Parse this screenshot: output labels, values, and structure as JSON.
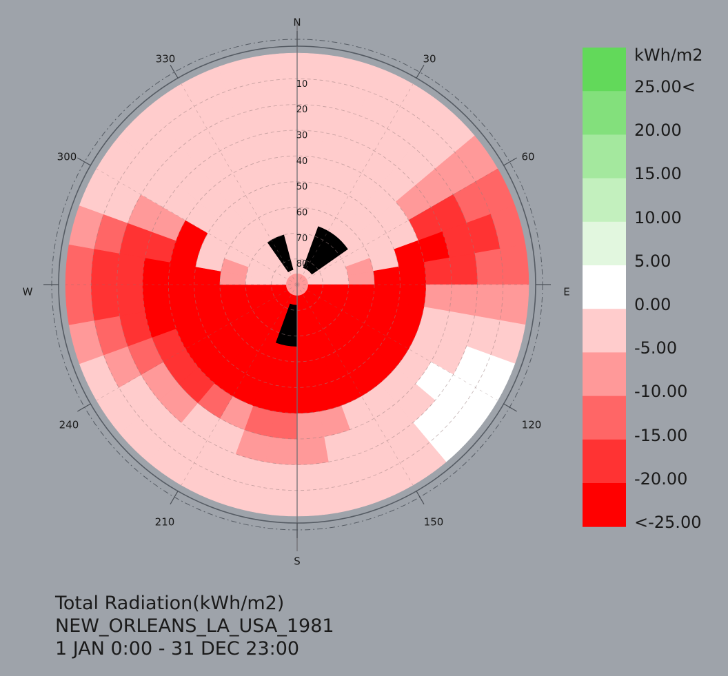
{
  "caption": {
    "line1": "Total Radiation(kWh/m2)",
    "line2": "NEW_ORLEANS_LA_USA_1981",
    "line3": "1 JAN 0:00 - 31 DEC 23:00"
  },
  "chart_data": {
    "type": "heatmap",
    "projection": "polar sky dome (azimuth / altitude)",
    "compass": {
      "N": "N",
      "E": "E",
      "S": "S",
      "W": "W"
    },
    "azimuth_ticks": [
      "30",
      "60",
      "120",
      "150",
      "210",
      "240",
      "300",
      "330"
    ],
    "altitude_ticks": [
      "10",
      "20",
      "30",
      "40",
      "50",
      "60",
      "70",
      "80"
    ],
    "legend": {
      "unit": "kWh/m2",
      "labels": [
        "25.00<",
        "20.00",
        "15.00",
        "10.00",
        "5.00",
        "0.00",
        "-5.00",
        "-10.00",
        "-15.00",
        "-20.00",
        "<-25.00"
      ],
      "colors": [
        "#62d95a",
        "#83e07c",
        "#a4e89e",
        "#c3f0be",
        "#e2f7df",
        "#ffffff",
        "#ffcccc",
        "#ff9999",
        "#ff6666",
        "#ff3333",
        "#ff0000"
      ]
    },
    "obstruction_color": "#000000",
    "cell_values_note": "approximate, in legend units (kWh/m2)",
    "rows": [
      {
        "alt_from": 0,
        "alt_to": 10,
        "az_values": [
          -3,
          -3,
          -3,
          -3,
          -5,
          -8,
          -12,
          -12,
          -12,
          -8,
          -3,
          0,
          1,
          1,
          -3,
          -5,
          -5,
          -5,
          -5,
          -3,
          -3,
          -5,
          -5,
          -5,
          -5,
          -10,
          -12,
          -12,
          -8,
          -5,
          -3,
          -3,
          -3,
          -3,
          -3,
          -3
        ]
      },
      {
        "alt_from": 10,
        "alt_to": 20,
        "az_values": [
          -3,
          -3,
          -3,
          -3,
          -5,
          -8,
          -12,
          -18,
          -12,
          -8,
          -3,
          0,
          1,
          1,
          -3,
          -5,
          -5,
          -5,
          -5,
          -5,
          -5,
          -5,
          -5,
          -5,
          -8,
          -12,
          -18,
          -18,
          -12,
          -5,
          -3,
          -3,
          -3,
          -3,
          -3,
          -3
        ]
      },
      {
        "alt_from": 20,
        "alt_to": 30,
        "az_values": [
          -3,
          -3,
          -3,
          -3,
          -5,
          -8,
          -18,
          -20,
          -18,
          -8,
          -3,
          -3,
          1,
          -3,
          -3,
          -5,
          -5,
          -8,
          -8,
          -8,
          -5,
          -5,
          -8,
          -10,
          -12,
          -18,
          -20,
          -20,
          -18,
          -8,
          -3,
          -3,
          -3,
          -3,
          -3,
          -3
        ]
      },
      {
        "alt_from": 30,
        "alt_to": 40,
        "az_values": [
          -3,
          -3,
          -3,
          -3,
          -3,
          -8,
          -18,
          -22,
          -18,
          -8,
          -5,
          -3,
          -3,
          -3,
          -5,
          -5,
          -8,
          -8,
          -12,
          -12,
          -10,
          -12,
          -18,
          -18,
          -20,
          -22,
          -22,
          -22,
          -20,
          -8,
          -3,
          -3,
          -3,
          -3,
          -3,
          -3
        ]
      },
      {
        "alt_from": 40,
        "alt_to": 50,
        "az_values": [
          -3,
          -3,
          -3,
          -3,
          -3,
          -3,
          -3,
          -22,
          -22,
          -22,
          -22,
          -22,
          -22,
          -22,
          -22,
          -22,
          -22,
          -22,
          -22,
          -22,
          -22,
          -22,
          -22,
          -22,
          -22,
          -22,
          -22,
          -22,
          -22,
          -22,
          -3,
          -3,
          -3,
          -3,
          -3,
          -3
        ]
      },
      {
        "alt_from": 50,
        "alt_to": 60,
        "az_values": [
          -3,
          -3,
          -3,
          -3,
          -3,
          -3,
          -3,
          -5,
          -22,
          -22,
          -22,
          -22,
          -22,
          -22,
          -22,
          -22,
          -22,
          -22,
          -22,
          -22,
          -22,
          -22,
          -22,
          -22,
          -22,
          -22,
          -22,
          -22,
          -5,
          -3,
          -3,
          -3,
          -3,
          -3,
          -3,
          -3
        ]
      },
      {
        "alt_from": 60,
        "alt_to": 70,
        "az_values": [
          -3,
          -3,
          -3,
          -3,
          -3,
          -3,
          -3,
          -8,
          -8,
          -22,
          -22,
          -22,
          -22,
          -22,
          -22,
          -22,
          -22,
          -22,
          -22,
          -22,
          -22,
          -22,
          -22,
          -22,
          -22,
          -22,
          -22,
          -8,
          -8,
          -3,
          -3,
          -3,
          -3,
          -3,
          -3,
          -3
        ]
      },
      {
        "alt_from": 70,
        "alt_to": 80,
        "az_values": [
          -3,
          -3,
          -3,
          -3,
          -3,
          -3,
          -3,
          -3,
          -5,
          -22,
          -22,
          -22,
          -22,
          -22,
          -22,
          -22,
          -22,
          -22,
          -22,
          -22,
          -22,
          -22,
          -22,
          -22,
          -22,
          -22,
          -22,
          -5,
          -5,
          -3,
          -3,
          -3,
          -3,
          -3,
          -3,
          -3
        ]
      },
      {
        "alt_from": 80,
        "alt_to": 90,
        "az_values": [
          -5,
          -5,
          -5,
          -5,
          -5,
          -5,
          -5,
          -5,
          -5,
          -22,
          -22,
          -22,
          -22,
          -22,
          -22,
          -22,
          -22,
          -22,
          -22,
          -22,
          -22,
          -22,
          -22,
          -22,
          -22,
          -22,
          -22,
          -5,
          -5,
          -5,
          -5,
          -5,
          -5,
          -5,
          -5,
          -5
        ]
      }
    ],
    "obstructions": [
      {
        "az_from": 20,
        "az_to": 55,
        "alt_from": 66,
        "alt_to": 83
      },
      {
        "az_from": 180,
        "az_to": 200,
        "alt_from": 66,
        "alt_to": 82
      },
      {
        "az_from": 325,
        "az_to": 345,
        "alt_from": 70,
        "alt_to": 84
      }
    ]
  }
}
